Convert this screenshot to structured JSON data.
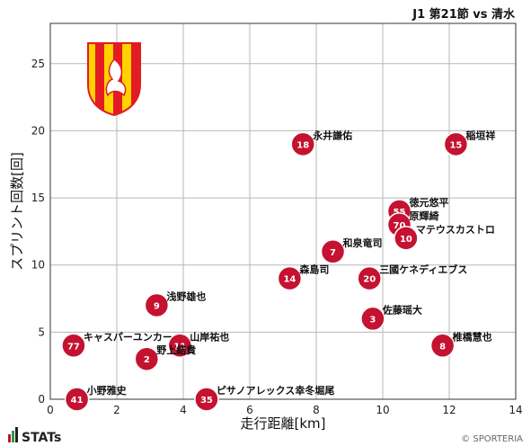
{
  "header": {
    "title": "J1 第21節 vs 清水"
  },
  "footer": {
    "brand": "STATs",
    "copyright": "© SPORTERIA"
  },
  "colors": {
    "marker": "#c41230",
    "marker_stroke": "#ffffff",
    "grid": "#b7b7b7",
    "frame": "#333333",
    "crest_red": "#e31b23",
    "crest_yellow": "#ffd200"
  },
  "chart_data": {
    "type": "scatter",
    "xlabel": "走行距離[km]",
    "ylabel": "スプリント回数[回]",
    "xlim": [
      0,
      14
    ],
    "ylim": [
      0,
      28
    ],
    "xticks": [
      0,
      2,
      4,
      6,
      8,
      10,
      12,
      14
    ],
    "yticks": [
      0,
      5,
      10,
      15,
      20,
      25
    ],
    "grid": true,
    "points": [
      {
        "number": "18",
        "name": "永井謙佑",
        "x": 7.6,
        "y": 19
      },
      {
        "number": "15",
        "name": "稲垣祥",
        "x": 12.2,
        "y": 19
      },
      {
        "number": "55",
        "name": "徳元悠平",
        "x": 10.5,
        "y": 14
      },
      {
        "number": "70",
        "name": "原輝綺",
        "x": 10.5,
        "y": 13
      },
      {
        "number": "10",
        "name": "マテウスカストロ",
        "x": 10.7,
        "y": 12
      },
      {
        "number": "7",
        "name": "和泉竜司",
        "x": 8.5,
        "y": 11
      },
      {
        "number": "14",
        "name": "森島司",
        "x": 7.2,
        "y": 9
      },
      {
        "number": "20",
        "name": "三國ケネディエブス",
        "x": 9.6,
        "y": 9
      },
      {
        "number": "9",
        "name": "浅野雄也",
        "x": 3.2,
        "y": 7
      },
      {
        "number": "3",
        "name": "佐藤瑶大",
        "x": 9.7,
        "y": 6
      },
      {
        "number": "77",
        "name": "キャスパーユンカー",
        "x": 0.7,
        "y": 4
      },
      {
        "number": "11",
        "name": "山岸祐也",
        "x": 3.9,
        "y": 4
      },
      {
        "number": "8",
        "name": "椎橋慧也",
        "x": 11.8,
        "y": 4
      },
      {
        "number": "2",
        "name": "野上結貴",
        "x": 2.9,
        "y": 3
      },
      {
        "number": "41",
        "name": "小野雅史",
        "x": 0.8,
        "y": 0
      },
      {
        "number": "35",
        "name": "ピサノアレックス幸冬堀尾",
        "x": 4.7,
        "y": 0
      }
    ]
  }
}
